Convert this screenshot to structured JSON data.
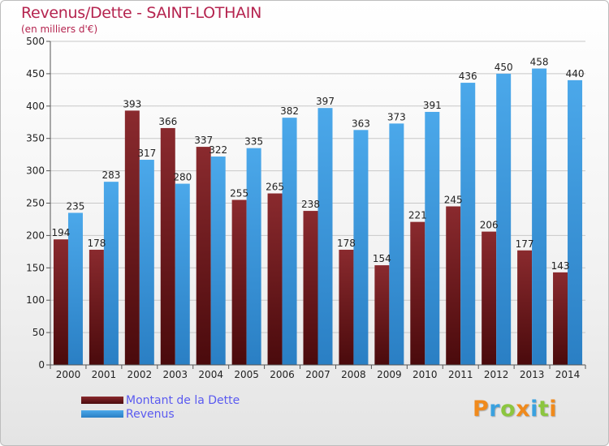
{
  "header": {
    "title": "Revenus/Dette - SAINT-LOTHAIN",
    "subtitle": "(en milliers d'€)"
  },
  "colors": {
    "dette": "#7a1e22",
    "revenus": "#3a9ae0"
  },
  "chart_data": {
    "type": "bar",
    "title": "Revenus/Dette - SAINT-LOTHAIN",
    "subtitle": "(en milliers d'€)",
    "categories": [
      "2000",
      "2001",
      "2002",
      "2003",
      "2004",
      "2005",
      "2006",
      "2007",
      "2008",
      "2009",
      "2010",
      "2011",
      "2012",
      "2013",
      "2014"
    ],
    "series": [
      {
        "name": "Montant de la Dette",
        "values": [
          194,
          178,
          393,
          366,
          337,
          255,
          265,
          238,
          178,
          154,
          221,
          245,
          206,
          177,
          143
        ]
      },
      {
        "name": "Revenus",
        "values": [
          235,
          283,
          317,
          280,
          322,
          335,
          382,
          397,
          363,
          373,
          391,
          436,
          450,
          458,
          440
        ]
      }
    ],
    "ylim": [
      0,
      500
    ],
    "yticks": [
      0,
      50,
      100,
      150,
      200,
      250,
      300,
      350,
      400,
      450,
      500
    ],
    "grid": true,
    "legend_position": "bottom-left"
  },
  "legend": {
    "items": [
      {
        "label": "Montant de la Dette"
      },
      {
        "label": "Revenus"
      }
    ]
  },
  "logo": {
    "text": "Proxiti",
    "letters": [
      {
        "ch": "P",
        "color": "#f08a1c"
      },
      {
        "ch": "r",
        "color": "#3aa1df"
      },
      {
        "ch": "o",
        "color": "#8cc63f"
      },
      {
        "ch": "x",
        "color": "#f08a1c"
      },
      {
        "ch": "i",
        "color": "#3aa1df"
      },
      {
        "ch": "t",
        "color": "#8cc63f"
      },
      {
        "ch": "i",
        "color": "#f08a1c"
      }
    ]
  }
}
